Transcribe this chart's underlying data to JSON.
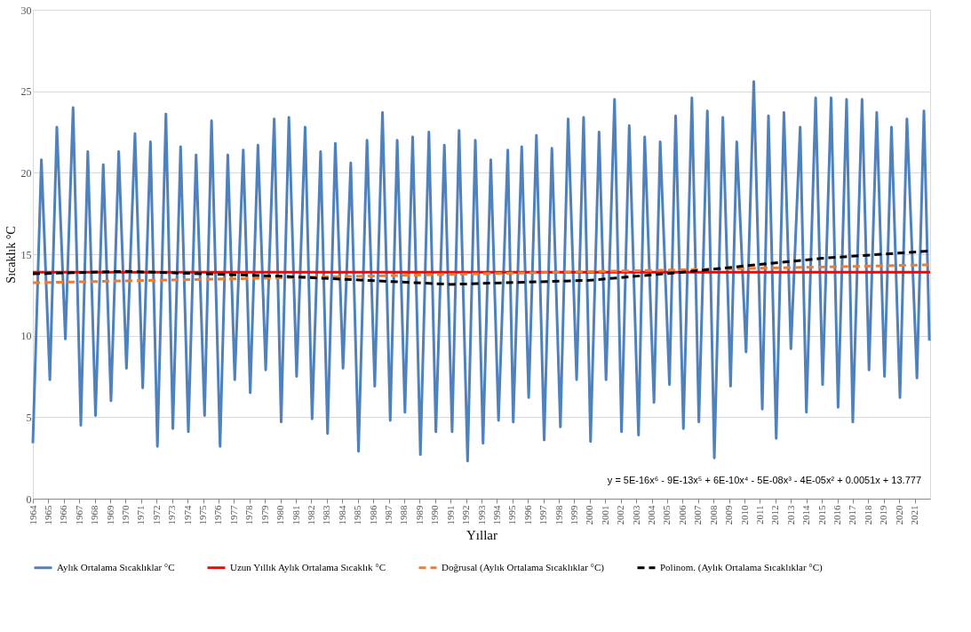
{
  "chart_data": {
    "type": "line",
    "xlabel": "Yıllar",
    "ylabel": "Sıcaklık °C",
    "xlim": [
      1964,
      2022
    ],
    "xticks": [
      1964,
      1965,
      1966,
      1967,
      1968,
      1969,
      1970,
      1971,
      1972,
      1973,
      1974,
      1975,
      1976,
      1977,
      1978,
      1979,
      1980,
      1981,
      1982,
      1983,
      1984,
      1985,
      1986,
      1987,
      1988,
      1989,
      1990,
      1991,
      1992,
      1993,
      1994,
      1995,
      1996,
      1997,
      1998,
      1999,
      2000,
      2001,
      2002,
      2003,
      2004,
      2005,
      2006,
      2007,
      2008,
      2009,
      2010,
      2011,
      2012,
      2013,
      2014,
      2015,
      2016,
      2017,
      2018,
      2019,
      2020,
      2021
    ],
    "ylim": [
      0,
      30
    ],
    "yticks": [
      0,
      5,
      10,
      15,
      20,
      25,
      30
    ],
    "grid": "y",
    "legend": "bottom",
    "marker": "none",
    "annotations": [
      "y = 5E-16x⁶ - 9E-13x⁵ + 6E-10x⁴ - 5E-08x³ - 4E-05x² + 0.0051x + 13.777"
    ],
    "series": [
      {
        "name": "Aylık Ortalama Sıcaklıklar °C",
        "color": "#4f81bd",
        "line_style": "solid",
        "x": [
          1964.0,
          1964.55,
          1965.1,
          1965.55,
          1966.1,
          1966.6,
          1967.1,
          1967.55,
          1968.05,
          1968.55,
          1969.05,
          1969.55,
          1970.05,
          1970.6,
          1971.1,
          1971.6,
          1972.05,
          1972.6,
          1973.05,
          1973.55,
          1974.05,
          1974.55,
          1975.1,
          1975.55,
          1976.1,
          1976.6,
          1977.05,
          1977.6,
          1978.05,
          1978.55,
          1979.05,
          1979.6,
          1980.05,
          1980.55,
          1981.05,
          1981.6,
          1982.05,
          1982.6,
          1983.05,
          1983.55,
          1984.05,
          1984.55,
          1985.05,
          1985.6,
          1986.1,
          1986.6,
          1987.1,
          1987.55,
          1988.05,
          1988.55,
          1989.05,
          1989.6,
          1990.05,
          1990.6,
          1991.1,
          1991.55,
          1992.1,
          1992.6,
          1993.1,
          1993.6,
          1994.1,
          1994.7,
          1995.05,
          1995.6,
          1996.05,
          1996.55,
          1997.05,
          1997.55,
          1998.1,
          1998.6,
          1999.15,
          1999.6,
          2000.05,
          2000.6,
          2001.05,
          2001.6,
          2002.05,
          2002.55,
          2003.15,
          2003.55,
          2004.15,
          2004.55,
          2005.15,
          2005.55,
          2006.05,
          2006.6,
          2007.05,
          2007.6,
          2008.05,
          2008.6,
          2009.1,
          2009.5,
          2010.1,
          2010.6,
          2011.15,
          2011.55,
          2012.05,
          2012.55,
          2013.0,
          2013.6,
          2014.0,
          2014.6,
          2015.05,
          2015.6,
          2016.05,
          2016.6,
          2017.0,
          2017.6,
          2018.05,
          2018.55,
          2019.05,
          2019.5,
          2020.05,
          2020.5,
          2021.15,
          2021.6,
          2021.95
        ],
        "values": [
          3.4,
          20.8,
          7.3,
          22.8,
          9.8,
          24.0,
          4.5,
          21.3,
          5.1,
          20.5,
          6.0,
          21.3,
          8.0,
          22.4,
          6.8,
          21.9,
          3.2,
          23.6,
          4.3,
          21.6,
          4.1,
          21.1,
          5.1,
          23.2,
          3.2,
          21.1,
          7.3,
          21.4,
          6.5,
          21.7,
          7.9,
          23.3,
          4.7,
          23.4,
          7.5,
          22.8,
          4.9,
          21.3,
          4.0,
          21.8,
          8.0,
          20.6,
          2.9,
          22.0,
          6.9,
          23.7,
          4.8,
          22.0,
          5.3,
          22.2,
          2.7,
          22.5,
          4.1,
          21.7,
          4.1,
          22.6,
          2.3,
          22.0,
          3.4,
          20.8,
          4.8,
          21.4,
          4.7,
          21.6,
          6.2,
          22.3,
          3.6,
          21.5,
          4.4,
          23.3,
          7.3,
          23.4,
          3.5,
          22.5,
          7.3,
          24.5,
          4.1,
          22.9,
          3.9,
          22.2,
          5.9,
          21.9,
          7.0,
          23.5,
          4.3,
          24.6,
          4.7,
          23.8,
          2.5,
          23.4,
          6.9,
          21.9,
          9.0,
          25.6,
          5.5,
          23.5,
          3.7,
          23.7,
          9.2,
          22.8,
          5.3,
          24.6,
          7.0,
          24.6,
          5.6,
          24.5,
          4.7,
          24.5,
          7.9,
          23.7,
          7.5,
          22.8,
          6.2,
          23.3,
          7.4,
          23.8,
          9.7
        ]
      },
      {
        "name": "Uzun Yıllık Aylık Ortalama Sıcaklık °C",
        "color": "#ff0000",
        "line_style": "solid",
        "x": [
          1964,
          2022
        ],
        "values": [
          13.9,
          13.9
        ]
      },
      {
        "name": "Doğrusal (Aylık Ortalama Sıcaklıklar °C)",
        "color": "#ed7d31",
        "line_style": "dashed",
        "x": [
          1964,
          2022
        ],
        "values": [
          13.25,
          14.35
        ]
      },
      {
        "name": "Polinom. (Aylık Ortalama Sıcaklıklar °C)",
        "color": "#000000",
        "line_style": "dashed",
        "x": [
          1964,
          1970,
          1980,
          1991,
          2000,
          2006,
          2015,
          2022
        ],
        "values": [
          13.8,
          13.95,
          13.65,
          13.15,
          13.4,
          13.9,
          14.75,
          15.2
        ]
      }
    ]
  }
}
